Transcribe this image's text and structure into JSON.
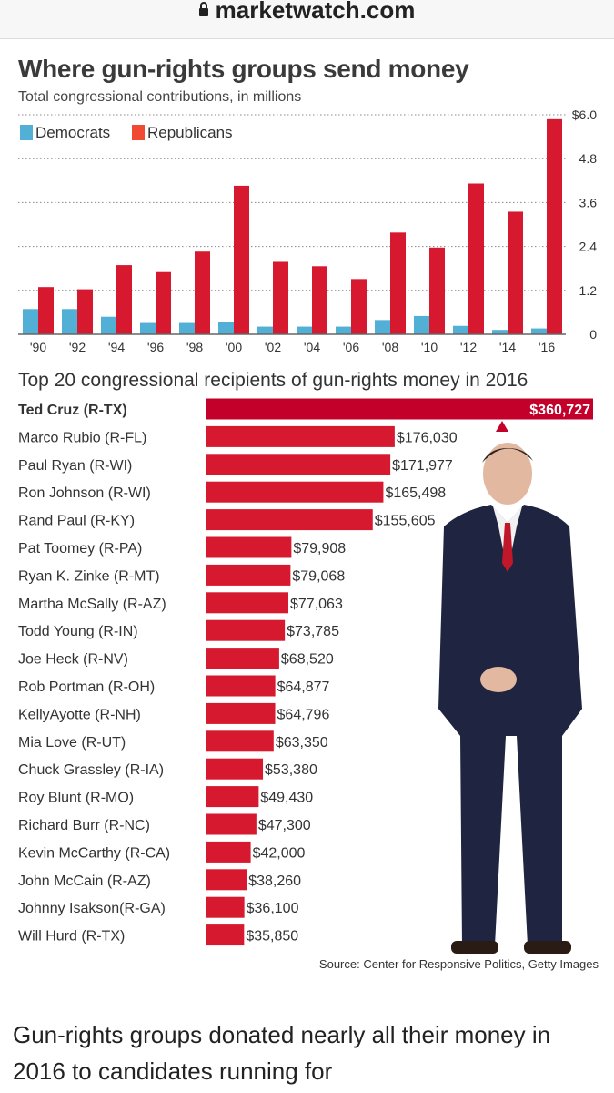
{
  "browser": {
    "url": "marketwatch.com",
    "lock_icon": "lock-icon"
  },
  "colors": {
    "democrats": "#52b0d6",
    "republicans": "#d7192f",
    "highlight": "#c20029"
  },
  "chart_data": [
    {
      "type": "bar",
      "title": "Where gun-rights groups send money",
      "subtitle": "Total congressional contributions, in millions",
      "categories": [
        "'90",
        "'92",
        "'94",
        "'96",
        "'98",
        "'00",
        "'02",
        "'04",
        "'06",
        "'08",
        "'10",
        "'12",
        "'14",
        "'16"
      ],
      "series": [
        {
          "name": "Democrats",
          "values": [
            0.69,
            0.69,
            0.48,
            0.31,
            0.31,
            0.33,
            0.21,
            0.21,
            0.21,
            0.39,
            0.5,
            0.23,
            0.12,
            0.16
          ]
        },
        {
          "name": "Republicans",
          "values": [
            1.29,
            1.23,
            1.89,
            1.7,
            2.26,
            4.06,
            1.98,
            1.86,
            1.51,
            2.78,
            2.37,
            4.12,
            3.35,
            5.88
          ]
        }
      ],
      "yticks": [
        "0",
        "1.2",
        "2.4",
        "3.6",
        "4.8",
        "$6.0"
      ],
      "ytick_values": [
        0,
        1.2,
        2.4,
        3.6,
        4.8,
        6.0
      ],
      "ylim": [
        0,
        6
      ],
      "grid": true,
      "legend": "top-left",
      "yaxis": "right"
    },
    {
      "type": "bar",
      "orientation": "horizontal",
      "title": "Top 20 congressional recipients of gun-rights money in 2016",
      "categories": [
        "Ted Cruz (R-TX)",
        "Marco Rubio (R-FL)",
        "Paul Ryan (R-WI)",
        "Ron Johnson (R-WI)",
        "Rand Paul (R-KY)",
        "Pat Toomey (R-PA)",
        "Ryan K. Zinke (R-MT)",
        "Martha McSally (R-AZ)",
        "Todd Young (R-IN)",
        "Joe Heck (R-NV)",
        "Rob Portman (R-OH)",
        "KellyAyotte (R-NH)",
        "Mia Love (R-UT)",
        "Chuck Grassley (R-IA)",
        "Roy Blunt (R-MO)",
        "Richard Burr (R-NC)",
        "Kevin McCarthy (R-CA)",
        "John McCain (R-AZ)",
        "Johnny  Isakson(R-GA)",
        "Will Hurd (R-TX)"
      ],
      "values": [
        360727,
        176030,
        171977,
        165498,
        155605,
        79908,
        79068,
        77063,
        73785,
        68520,
        64877,
        64796,
        63350,
        53380,
        49430,
        47300,
        42000,
        38260,
        36100,
        35850
      ],
      "labels": [
        "$360,727",
        "$176,030",
        "$171,977",
        "$165,498",
        "$155,605",
        "$79,908",
        "$79,068",
        "$77,063",
        "$73,785",
        "$68,520",
        "$64,877",
        "$64,796",
        "$63,350",
        "$53,380",
        "$49,430",
        "$47,300",
        "$42,000",
        "$38,260",
        "$36,100",
        "$35,850"
      ]
    }
  ],
  "source": "Source: Center for Responsive Politics, Getty Images",
  "article_text": "Gun-rights groups donated nearly all their money in 2016 to candidates running for"
}
